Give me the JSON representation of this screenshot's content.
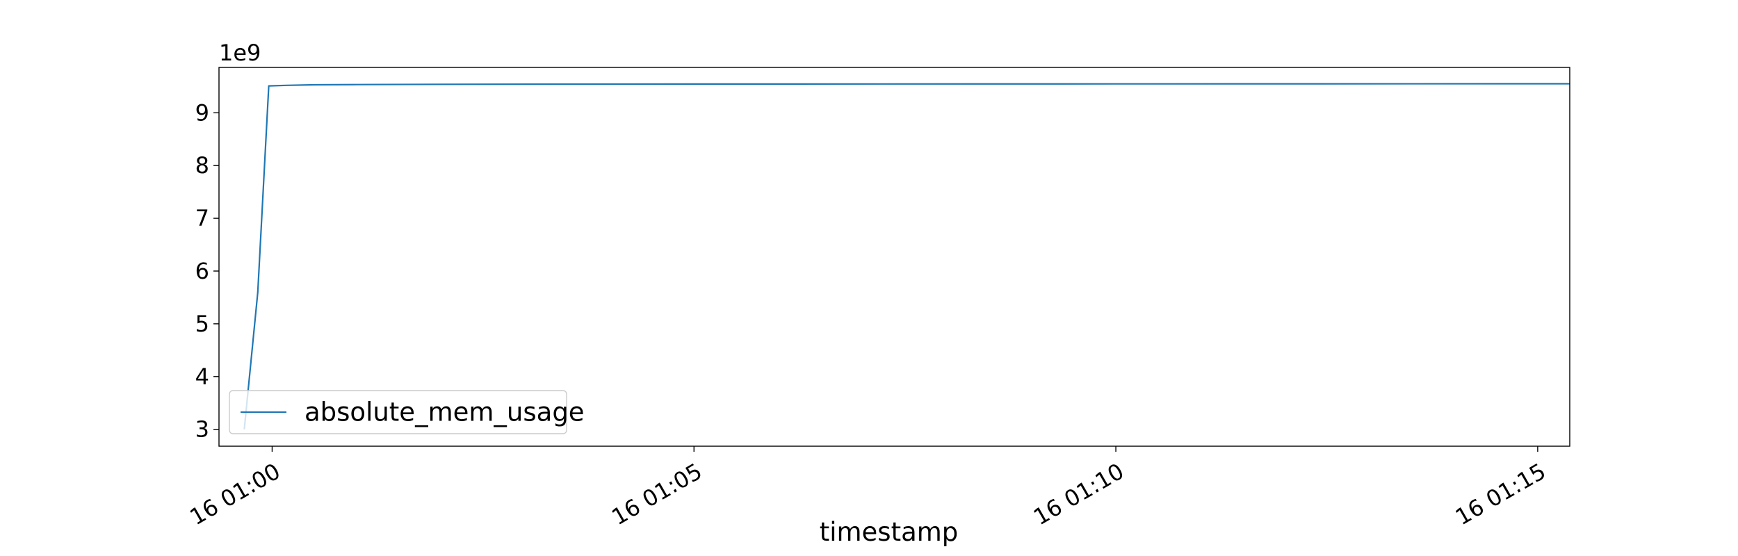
{
  "chart_data": {
    "type": "line",
    "title": "",
    "xlabel": "timestamp",
    "ylabel": "",
    "y_offset_label": "1e9",
    "y_scale": 1000000000,
    "x_unit": "minutes",
    "xlim": [
      -0.63,
      15.38
    ],
    "ylim": [
      2.68,
      9.86
    ],
    "x_ticks": [
      {
        "value": 0,
        "label": "16 01:00"
      },
      {
        "value": 5,
        "label": "16 01:05"
      },
      {
        "value": 10,
        "label": "16 01:10"
      },
      {
        "value": 15,
        "label": "16 01:15"
      }
    ],
    "y_ticks": [
      {
        "value": 3,
        "label": "3"
      },
      {
        "value": 4,
        "label": "4"
      },
      {
        "value": 5,
        "label": "5"
      },
      {
        "value": 6,
        "label": "6"
      },
      {
        "value": 7,
        "label": "7"
      },
      {
        "value": 8,
        "label": "8"
      },
      {
        "value": 9,
        "label": "9"
      }
    ],
    "legend": {
      "position": "lower-left",
      "entries": [
        "absolute_mem_usage"
      ]
    },
    "grid": false,
    "series": [
      {
        "name": "absolute_mem_usage",
        "color": "#1f77b4",
        "x": [
          -0.33,
          -0.17,
          -0.04,
          0.17,
          0.5,
          1.0,
          2.0,
          5.0,
          10.0,
          15.38
        ],
        "y": [
          3.0,
          5.6,
          9.51,
          9.52,
          9.53,
          9.535,
          9.54,
          9.545,
          9.548,
          9.55
        ]
      }
    ]
  }
}
